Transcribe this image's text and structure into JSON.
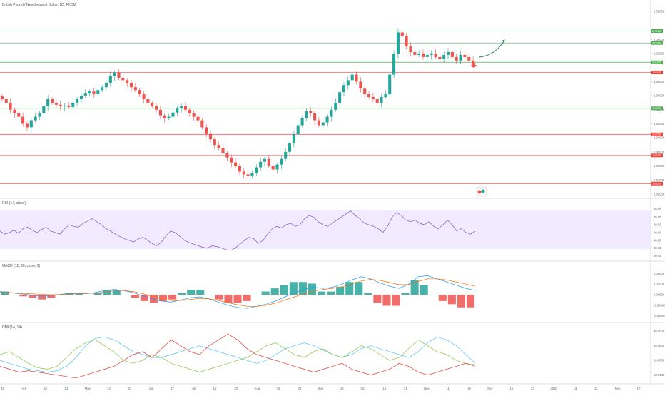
{
  "header": {
    "symbol_title": "British Pound / New Zealand Dollar, 1D, FXCM"
  },
  "colors": {
    "up": "#26a69a",
    "down": "#ef5350",
    "support_line": "#4caf50",
    "resistance_line": "#f44336",
    "rsi_band": "#ede1ff",
    "rsi_line": "#7e57c2",
    "macd_line": "#2196f3",
    "signal_line": "#ff6d00",
    "hist_up": "#26a69a",
    "hist_down": "#ef5350",
    "adx": "#4fc3f7",
    "di_plus": "#8bc34a",
    "di_minus": "#e53935"
  },
  "price_pane": {
    "y_ticks": [
      "2.08000",
      "2.04000",
      "2.02000",
      "1.98000",
      "1.96000",
      "1.94000",
      "1.92000",
      "1.90000",
      "1.88000",
      "1.86000",
      "1.84000",
      "1.82000"
    ],
    "horizontal_levels": [
      {
        "kind": "support",
        "label": "2.0520"
      },
      {
        "kind": "support",
        "label": "2.0350"
      },
      {
        "kind": "support",
        "label": "2.0075"
      },
      {
        "kind": "resistance",
        "label": "1.9930"
      },
      {
        "kind": "support",
        "label": "1.9420"
      },
      {
        "kind": "resistance",
        "label": "1.9050"
      },
      {
        "kind": "resistance",
        "label": "1.8750"
      },
      {
        "kind": "resistance",
        "label": "1.8350"
      }
    ]
  },
  "chart_data": [
    {
      "type": "candlestick",
      "title": "British Pound / New Zealand Dollar, 1D, FXCM",
      "ylim": [
        1.82,
        2.09
      ],
      "close_path_approx": [
        1.955,
        1.95,
        1.94,
        1.935,
        1.93,
        1.92,
        1.915,
        1.925,
        1.93,
        1.935,
        1.945,
        1.955,
        1.95,
        1.947,
        1.945,
        1.946,
        1.944,
        1.95,
        1.955,
        1.96,
        1.963,
        1.966,
        1.962,
        1.968,
        1.972,
        1.978,
        1.988,
        1.993,
        1.985,
        1.982,
        1.978,
        1.972,
        1.968,
        1.962,
        1.955,
        1.95,
        1.945,
        1.94,
        1.932,
        1.928,
        1.93,
        1.936,
        1.942,
        1.945,
        1.94,
        1.935,
        1.93,
        1.925,
        1.915,
        1.905,
        1.898,
        1.89,
        1.885,
        1.878,
        1.872,
        1.865,
        1.86,
        1.852,
        1.848,
        1.846,
        1.85,
        1.858,
        1.866,
        1.87,
        1.86,
        1.855,
        1.862,
        1.87,
        1.88,
        1.892,
        1.905,
        1.918,
        1.928,
        1.938,
        1.935,
        1.925,
        1.918,
        1.922,
        1.93,
        1.94,
        1.95,
        1.965,
        1.975,
        1.982,
        1.99,
        1.98,
        1.97,
        1.962,
        1.958,
        1.955,
        1.95,
        1.958,
        1.962,
        1.99,
        2.02,
        2.05,
        2.045,
        2.03,
        2.022,
        2.018,
        2.02,
        2.015,
        2.018,
        2.02,
        2.015,
        2.012,
        2.018,
        2.022,
        2.015,
        2.01,
        2.018,
        2.015,
        2.01,
        2.006
      ]
    },
    {
      "type": "line",
      "title": "RSI (14, close)",
      "y_ticks": [
        "80.00",
        "70.00",
        "60.00",
        "50.00",
        "40.00",
        "30.00",
        "20.00"
      ],
      "band": [
        30,
        70
      ],
      "values_approx": [
        52,
        48,
        50,
        53,
        49,
        55,
        57,
        53,
        50,
        54,
        57,
        52,
        50,
        48,
        55,
        60,
        58,
        57,
        62,
        65,
        68,
        64,
        60,
        55,
        52,
        48,
        45,
        42,
        40,
        38,
        42,
        44,
        40,
        36,
        33,
        38,
        46,
        52,
        50,
        45,
        40,
        37,
        35,
        33,
        31,
        30,
        33,
        32,
        30,
        28,
        27,
        30,
        35,
        40,
        44,
        42,
        36,
        40,
        48,
        55,
        58,
        56,
        60,
        62,
        58,
        60,
        68,
        72,
        70,
        64,
        60,
        58,
        62,
        66,
        70,
        74,
        78,
        72,
        68,
        62,
        60,
        58,
        55,
        50,
        58,
        70,
        76,
        72,
        66,
        64,
        66,
        62,
        60,
        64,
        58,
        55,
        60,
        66,
        60,
        52,
        55,
        50,
        48,
        52
      ]
    },
    {
      "type": "line",
      "title": "MACD (12, 26, close, 9)",
      "y_ticks": [
        "0.04000",
        "0.02000",
        "0.00000",
        "-0.02000",
        "-0.04000"
      ],
      "series": [
        {
          "name": "MACD",
          "values_approx": [
            0.006,
            0.004,
            0.002,
            0.0,
            -0.002,
            -0.002,
            0.0,
            0.002,
            0.003,
            0.002,
            0.004,
            0.008,
            0.01,
            0.008,
            0.004,
            -0.002,
            -0.008,
            -0.012,
            -0.014,
            -0.01,
            -0.006,
            -0.004,
            -0.008,
            -0.014,
            -0.02,
            -0.024,
            -0.026,
            -0.022,
            -0.018,
            -0.012,
            -0.004,
            0.004,
            0.01,
            0.014,
            0.012,
            0.014,
            0.02,
            0.028,
            0.034,
            0.03,
            0.022,
            0.016,
            0.012,
            0.02,
            0.034,
            0.036,
            0.03,
            0.024,
            0.018,
            0.012,
            0.008
          ]
        },
        {
          "name": "Signal",
          "values_approx": [
            0.004,
            0.004,
            0.003,
            0.002,
            0.001,
            0.0,
            0.0,
            0.001,
            0.002,
            0.002,
            0.003,
            0.005,
            0.007,
            0.008,
            0.006,
            0.002,
            -0.003,
            -0.008,
            -0.011,
            -0.011,
            -0.009,
            -0.007,
            -0.008,
            -0.011,
            -0.015,
            -0.019,
            -0.022,
            -0.022,
            -0.02,
            -0.016,
            -0.01,
            -0.004,
            0.002,
            0.007,
            0.01,
            0.012,
            0.015,
            0.02,
            0.026,
            0.029,
            0.027,
            0.023,
            0.019,
            0.019,
            0.025,
            0.03,
            0.03,
            0.028,
            0.024,
            0.02,
            0.016
          ]
        }
      ]
    },
    {
      "type": "line",
      "title": "DMI (14, 14)",
      "y_ticks": [
        "40.0000",
        "30.0000",
        "20.0000",
        "10.0000"
      ],
      "series": [
        {
          "name": "ADX",
          "values_approx": [
            20,
            18,
            16,
            14,
            13,
            12,
            13,
            16,
            22,
            30,
            35,
            36,
            34,
            30,
            26,
            24,
            22,
            22,
            24,
            26,
            28,
            30,
            28,
            26,
            24,
            22,
            20,
            18,
            20,
            24,
            28,
            30,
            32,
            30,
            27,
            24,
            22,
            24,
            28,
            30,
            28,
            26,
            24,
            22,
            26,
            32,
            36,
            34,
            30,
            24,
            18
          ]
        },
        {
          "name": "DI+",
          "values_approx": [
            24,
            26,
            22,
            18,
            15,
            14,
            16,
            22,
            28,
            32,
            34,
            30,
            26,
            20,
            18,
            20,
            24,
            22,
            18,
            16,
            14,
            12,
            14,
            16,
            18,
            20,
            22,
            26,
            30,
            32,
            28,
            24,
            22,
            26,
            28,
            24,
            22,
            26,
            30,
            28,
            24,
            20,
            22,
            28,
            34,
            30,
            26,
            24,
            20,
            18,
            17
          ]
        },
        {
          "name": "DI-",
          "values_approx": [
            16,
            14,
            12,
            13,
            12,
            11,
            10,
            9,
            8,
            10,
            12,
            14,
            16,
            20,
            24,
            26,
            22,
            28,
            34,
            30,
            26,
            24,
            30,
            34,
            38,
            34,
            28,
            24,
            22,
            20,
            18,
            16,
            14,
            12,
            14,
            16,
            18,
            14,
            12,
            10,
            12,
            14,
            18,
            16,
            12,
            10,
            12,
            14,
            16,
            18,
            16
          ]
        }
      ]
    }
  ],
  "x_axis": {
    "labels": [
      "19",
      "Apr",
      "15",
      "23",
      "May",
      "13",
      "21",
      "Jun",
      "17",
      "Jul",
      "15",
      "22",
      "Aug",
      "19",
      "26",
      "Sep",
      "16",
      "Oct",
      "14",
      "21",
      "Nov",
      "11",
      "19",
      "Dec",
      "16",
      "23",
      "2020",
      "13",
      "21",
      "Feb",
      "17"
    ]
  }
}
